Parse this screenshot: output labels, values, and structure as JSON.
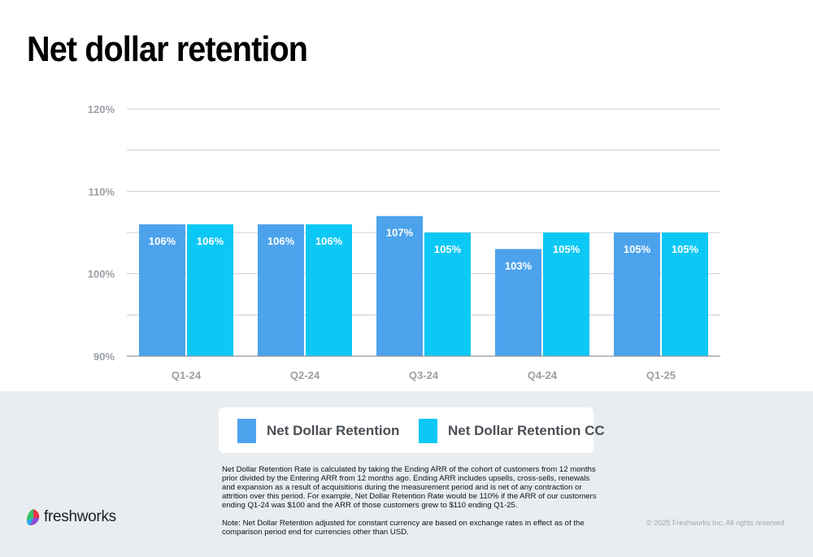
{
  "page": {
    "title": "Net dollar retention",
    "brand": "freshworks",
    "copyright": "© 2025 Freshworks Inc. All rights reserved."
  },
  "chart_data": {
    "type": "bar",
    "categories": [
      "Q1-24",
      "Q2-24",
      "Q3-24",
      "Q4-24",
      "Q1-25"
    ],
    "series": [
      {
        "name": "Net Dollar Retention",
        "color": "#4ca3ec",
        "values": [
          106,
          106,
          107,
          103,
          105
        ],
        "labels": [
          "106%",
          "106%",
          "107%",
          "103%",
          "105%"
        ]
      },
      {
        "name": "Net Dollar Retention CC",
        "color": "#0bc8f4",
        "values": [
          106,
          106,
          105,
          105,
          105
        ],
        "labels": [
          "106%",
          "106%",
          "105%",
          "105%",
          "105%"
        ]
      }
    ],
    "ylim": [
      90,
      120
    ],
    "yticks": [
      90,
      100,
      110,
      120
    ],
    "ytick_labels": [
      "90%",
      "100%",
      "110%",
      "120%"
    ],
    "grid": true,
    "legend_position": "bottom",
    "xlabel": "",
    "ylabel": ""
  },
  "notes": [
    "Net Dollar Retention Rate is calculated by taking the Ending ARR of the cohort of customers from 12 months prior divided by the Entering ARR from 12 months ago. Ending ARR includes upsells, cross-sells, renewals and expansion as a result of acquisitions during the measurement period and is net of any contraction or attrition over this period. For example, Net Dollar Retention Rate would be 110% if the ARR of our customers ending Q1-24 was $100 and the ARR of those customers grew to $110 ending Q1-25.",
    "Note: Net Dollar Retention adjusted for constant currency are based on exchange rates in effect as of the comparison period end for currencies other than USD."
  ],
  "colors": {
    "grid": "#c9cdd1",
    "tick_text": "#9a9fa5",
    "footer_bg": "#e9edf1"
  }
}
